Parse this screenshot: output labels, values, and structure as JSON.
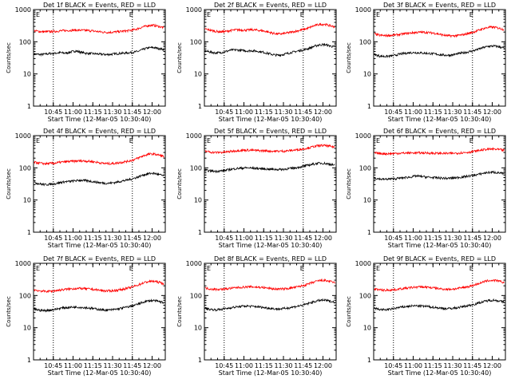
{
  "chart_data": [
    {
      "type": "line",
      "title": "Det 1f BLACK = Events, RED = LLD",
      "xlabel": "Start Time (12-Mar-05 10:30:40)",
      "ylabel": "Counts/sec",
      "ylog": true,
      "ylim": [
        1,
        1000
      ],
      "y_ticks": [
        "1",
        "10",
        "100",
        "1000"
      ],
      "x_ticks": [
        "10:45",
        "11:00",
        "11:15",
        "11:30",
        "11:45",
        "12:00"
      ],
      "top_labels": [
        "E",
        "E"
      ],
      "dotted_lines_at": [
        "10:45",
        "11:45"
      ],
      "series": [
        {
          "color": "#000000",
          "baseline": 42,
          "hump": 1.7,
          "points": [
            42,
            40,
            41,
            43,
            44,
            46,
            44,
            48,
            52,
            47,
            44,
            43,
            42,
            41,
            40,
            41,
            43,
            44,
            45,
            47,
            50,
            58,
            65,
            66,
            62,
            57
          ]
        },
        {
          "color": "#ff0000",
          "baseline": 215,
          "hump": 1.6,
          "points": [
            220,
            208,
            205,
            206,
            210,
            218,
            222,
            226,
            230,
            228,
            224,
            220,
            210,
            200,
            196,
            198,
            205,
            212,
            220,
            232,
            256,
            290,
            320,
            325,
            300,
            270
          ]
        }
      ]
    },
    {
      "type": "line",
      "title": "Det 2f BLACK = Events, RED = LLD",
      "xlabel": "Start Time (12-Mar-05 10:30:40)",
      "ylabel": "Counts/sec",
      "ylog": true,
      "ylim": [
        1,
        1000
      ],
      "y_ticks": [
        "1",
        "10",
        "100",
        "1000"
      ],
      "x_ticks": [
        "10:45",
        "11:00",
        "11:15",
        "11:30",
        "11:45",
        "12:00"
      ],
      "top_labels": [
        "E",
        "E"
      ],
      "dotted_lines_at": [
        "10:45",
        "11:45"
      ],
      "series": [
        {
          "color": "#000000",
          "points": [
            52,
            48,
            45,
            46,
            50,
            55,
            56,
            54,
            52,
            53,
            51,
            48,
            44,
            40,
            38,
            40,
            44,
            48,
            52,
            56,
            62,
            72,
            80,
            82,
            75,
            68
          ]
        },
        {
          "color": "#ff0000",
          "points": [
            250,
            230,
            210,
            205,
            208,
            225,
            235,
            232,
            230,
            236,
            230,
            220,
            205,
            185,
            175,
            178,
            190,
            205,
            222,
            240,
            270,
            315,
            345,
            350,
            320,
            290
          ]
        }
      ]
    },
    {
      "type": "line",
      "title": "Det 3f BLACK = Events, RED = LLD",
      "xlabel": "Start Time (12-Mar-05 10:30:40)",
      "ylabel": "Counts/sec",
      "ylog": true,
      "ylim": [
        1,
        1000
      ],
      "y_ticks": [
        "1",
        "10",
        "100",
        "1000"
      ],
      "x_ticks": [
        "10:45",
        "11:00",
        "11:15",
        "11:30",
        "11:45",
        "12:00"
      ],
      "top_labels": [
        "E",
        "E"
      ],
      "dotted_lines_at": [
        "10:45",
        "11:45"
      ],
      "series": [
        {
          "color": "#000000",
          "points": [
            40,
            36,
            35,
            36,
            38,
            42,
            44,
            46,
            46,
            45,
            44,
            43,
            41,
            39,
            38,
            39,
            42,
            45,
            48,
            52,
            58,
            66,
            72,
            74,
            70,
            64
          ]
        },
        {
          "color": "#ff0000",
          "points": [
            175,
            160,
            155,
            158,
            162,
            170,
            180,
            188,
            195,
            198,
            196,
            190,
            180,
            165,
            155,
            152,
            156,
            165,
            180,
            198,
            225,
            255,
            280,
            285,
            265,
            240
          ]
        }
      ]
    },
    {
      "type": "line",
      "title": "Det 4f BLACK = Events, RED = LLD",
      "xlabel": "Start Time (12-Mar-05 10:30:40)",
      "ylabel": "Counts/sec",
      "ylog": true,
      "ylim": [
        1,
        1000
      ],
      "y_ticks": [
        "1",
        "10",
        "100",
        "1000"
      ],
      "x_ticks": [
        "10:45",
        "11:00",
        "11:15",
        "11:30",
        "11:45",
        "12:00"
      ],
      "top_labels": [
        "E",
        "E"
      ],
      "dotted_lines_at": [
        "10:45",
        "11:45"
      ],
      "series": [
        {
          "color": "#000000",
          "points": [
            35,
            32,
            30,
            31,
            32,
            35,
            37,
            38,
            40,
            41,
            40,
            38,
            36,
            34,
            33,
            34,
            36,
            39,
            42,
            46,
            52,
            60,
            66,
            68,
            62,
            56
          ]
        },
        {
          "color": "#ff0000",
          "points": [
            150,
            140,
            135,
            136,
            140,
            148,
            155,
            158,
            162,
            165,
            162,
            158,
            150,
            140,
            135,
            136,
            142,
            150,
            160,
            175,
            200,
            235,
            265,
            270,
            250,
            225
          ]
        }
      ]
    },
    {
      "type": "line",
      "title": "Det 5f BLACK = Events, RED = LLD",
      "xlabel": "Start Time (12-Mar-05 10:30:40)",
      "ylabel": "Counts/sec",
      "ylog": true,
      "ylim": [
        1,
        1000
      ],
      "y_ticks": [
        "1",
        "10",
        "100",
        "1000"
      ],
      "x_ticks": [
        "10:45",
        "11:00",
        "11:15",
        "11:30",
        "11:45",
        "12:00"
      ],
      "top_labels": [
        "E",
        "E"
      ],
      "dotted_lines_at": [
        "10:45",
        "11:45"
      ],
      "series": [
        {
          "color": "#000000",
          "points": [
            85,
            80,
            78,
            80,
            84,
            90,
            95,
            98,
            100,
            98,
            96,
            94,
            92,
            90,
            89,
            90,
            94,
            98,
            104,
            112,
            122,
            132,
            140,
            138,
            130,
            120
          ]
        },
        {
          "color": "#ff0000",
          "points": [
            330,
            310,
            300,
            302,
            310,
            325,
            340,
            350,
            355,
            352,
            345,
            340,
            335,
            330,
            328,
            330,
            340,
            352,
            368,
            390,
            420,
            460,
            490,
            495,
            470,
            440
          ]
        }
      ]
    },
    {
      "type": "line",
      "title": "Det 6f BLACK = Events, RED = LLD",
      "xlabel": "Start Time (12-Mar-05 10:30:40)",
      "ylabel": "Counts/sec",
      "ylog": true,
      "ylim": [
        1,
        1000
      ],
      "y_ticks": [
        "1",
        "10",
        "100",
        "1000"
      ],
      "x_ticks": [
        "10:45",
        "11:00",
        "11:15",
        "11:30",
        "11:45",
        "12:00"
      ],
      "top_labels": [
        "E",
        "E"
      ],
      "dotted_lines_at": [
        "10:45",
        "11:45"
      ],
      "series": [
        {
          "color": "#000000",
          "points": [
            48,
            45,
            44,
            45,
            46,
            48,
            50,
            52,
            56,
            54,
            52,
            50,
            49,
            48,
            47,
            48,
            50,
            52,
            55,
            58,
            62,
            68,
            72,
            73,
            70,
            66
          ]
        },
        {
          "color": "#ff0000",
          "points": [
            290,
            280,
            275,
            276,
            280,
            285,
            288,
            290,
            292,
            292,
            290,
            286,
            284,
            282,
            280,
            282,
            288,
            295,
            305,
            320,
            340,
            365,
            380,
            382,
            370,
            350
          ]
        }
      ]
    },
    {
      "type": "line",
      "title": "Det 7f BLACK = Events, RED = LLD",
      "xlabel": "Start Time (12-Mar-05 10:30:40)",
      "ylabel": "Counts/sec",
      "ylog": true,
      "ylim": [
        1,
        1000
      ],
      "y_ticks": [
        "1",
        "10",
        "100",
        "1000"
      ],
      "x_ticks": [
        "10:45",
        "11:00",
        "11:15",
        "11:30",
        "11:45",
        "12:00"
      ],
      "top_labels": [
        "E",
        "E"
      ],
      "dotted_lines_at": [
        "10:45",
        "11:45"
      ],
      "series": [
        {
          "color": "#000000",
          "points": [
            38,
            35,
            34,
            35,
            37,
            40,
            42,
            43,
            44,
            43,
            42,
            40,
            38,
            36,
            35,
            36,
            38,
            41,
            44,
            48,
            54,
            62,
            68,
            70,
            65,
            60
          ]
        },
        {
          "color": "#ff0000",
          "points": [
            150,
            140,
            135,
            136,
            140,
            148,
            155,
            160,
            165,
            166,
            162,
            158,
            150,
            142,
            138,
            140,
            146,
            156,
            168,
            185,
            212,
            245,
            272,
            278,
            258,
            232
          ]
        }
      ]
    },
    {
      "type": "line",
      "title": "Det 8f BLACK = Events, RED = LLD",
      "xlabel": "Start Time (12-Mar-05 10:30:40)",
      "ylabel": "Counts/sec",
      "ylog": true,
      "ylim": [
        1,
        1000
      ],
      "y_ticks": [
        "1",
        "10",
        "100",
        "1000"
      ],
      "x_ticks": [
        "10:45",
        "11:00",
        "11:15",
        "11:30",
        "11:45",
        "12:00"
      ],
      "top_labels": [
        "E",
        "E"
      ],
      "dotted_lines_at": [
        "10:45",
        "11:45"
      ],
      "series": [
        {
          "color": "#000000",
          "points": [
            40,
            37,
            36,
            37,
            39,
            42,
            44,
            46,
            47,
            46,
            45,
            43,
            41,
            39,
            38,
            39,
            41,
            44,
            47,
            51,
            57,
            64,
            70,
            72,
            67,
            62
          ]
        },
        {
          "color": "#ff0000",
          "points": [
            170,
            160,
            155,
            156,
            160,
            168,
            175,
            180,
            185,
            186,
            182,
            178,
            170,
            162,
            158,
            160,
            166,
            176,
            188,
            205,
            230,
            262,
            290,
            295,
            275,
            250
          ]
        }
      ]
    },
    {
      "type": "line",
      "title": "Det 9f BLACK = Events, RED = LLD",
      "xlabel": "Start Time (12-Mar-05 10:30:40)",
      "ylabel": "Counts/sec",
      "ylog": true,
      "ylim": [
        1,
        1000
      ],
      "y_ticks": [
        "1",
        "10",
        "100",
        "1000"
      ],
      "x_ticks": [
        "10:45",
        "11:00",
        "11:15",
        "11:30",
        "11:45",
        "12:00"
      ],
      "top_labels": [
        "E",
        "E"
      ],
      "dotted_lines_at": [
        "10:45",
        "11:45"
      ],
      "series": [
        {
          "color": "#000000",
          "points": [
            40,
            37,
            36,
            37,
            40,
            43,
            45,
            47,
            48,
            47,
            46,
            44,
            42,
            40,
            39,
            40,
            42,
            45,
            48,
            52,
            58,
            64,
            70,
            72,
            68,
            62
          ]
        },
        {
          "color": "#ff0000",
          "points": [
            160,
            150,
            146,
            148,
            152,
            160,
            168,
            175,
            182,
            185,
            182,
            176,
            168,
            160,
            156,
            158,
            165,
            175,
            188,
            205,
            232,
            262,
            290,
            296,
            278,
            252
          ]
        }
      ]
    }
  ]
}
